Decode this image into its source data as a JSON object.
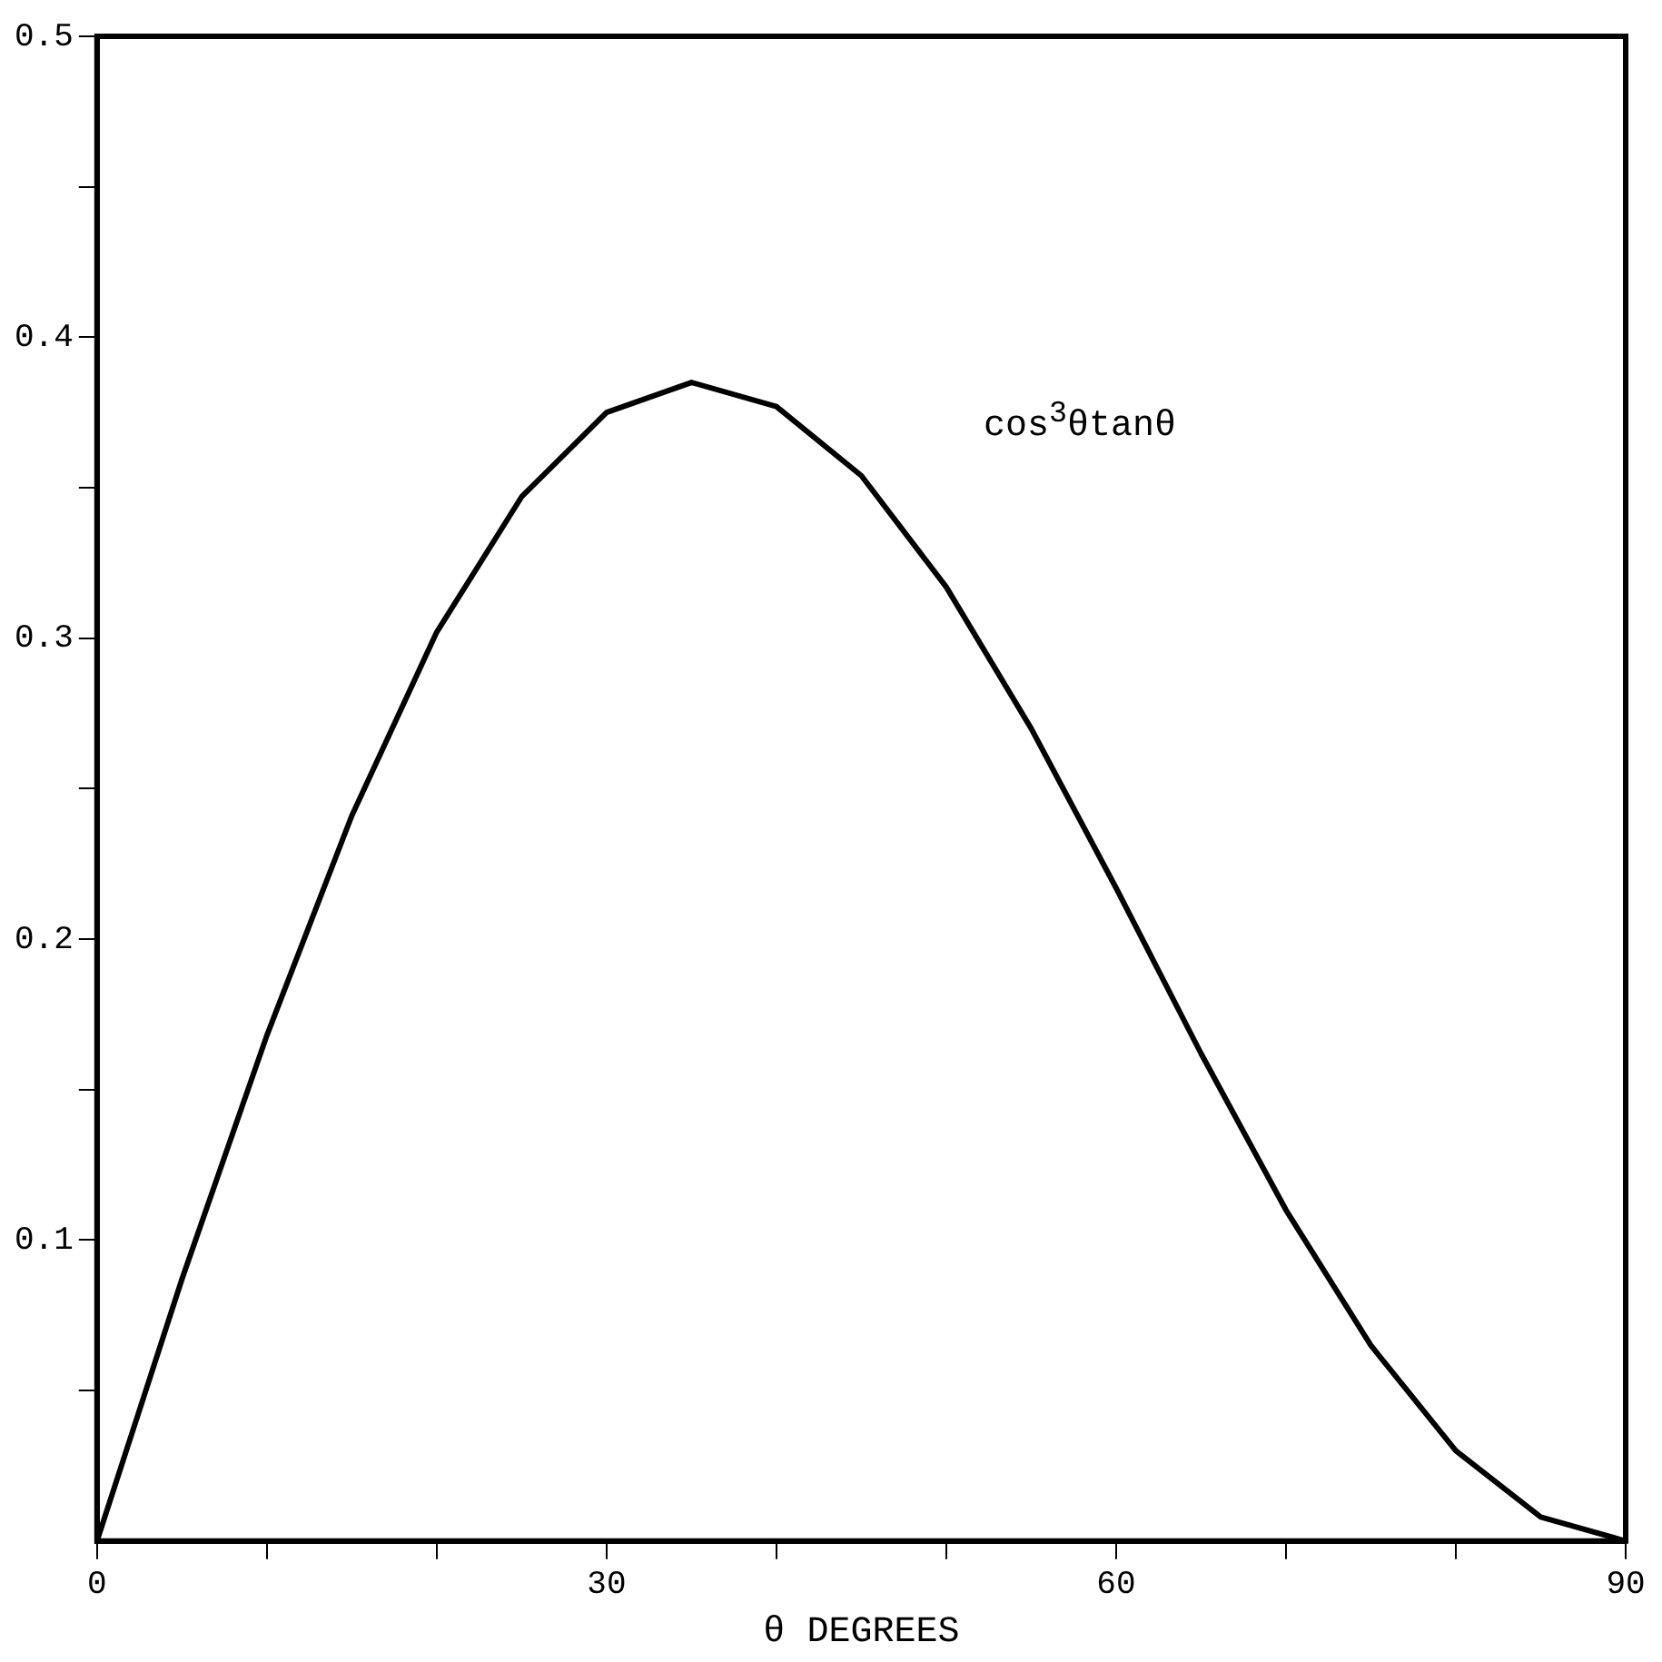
{
  "chart_data": {
    "type": "line",
    "xlabel": "θ DEGREES",
    "annotations": [
      "cos$^{3}$θtanθ"
    ],
    "x": [
      0,
      5,
      10,
      15,
      20,
      25,
      30,
      35,
      40,
      45,
      50,
      55,
      60,
      65,
      70,
      75,
      80,
      85,
      90
    ],
    "series": [
      {
        "color": "#000000",
        "values": [
          0,
          0.087,
          0.168,
          0.241,
          0.302,
          0.347,
          0.375,
          0.385,
          0.377,
          0.354,
          0.317,
          0.27,
          0.217,
          0.162,
          0.11,
          0.065,
          0.03,
          0.008,
          0
        ]
      }
    ],
    "xlim": [
      0,
      90
    ],
    "xticks": [
      0,
      {
        "value": 10,
        "label": null
      },
      {
        "value": 20,
        "label": null
      },
      30,
      {
        "value": 40,
        "label": null
      },
      {
        "value": 50,
        "label": null
      },
      60,
      {
        "value": 70,
        "label": null
      },
      {
        "value": 80,
        "label": null
      },
      90
    ],
    "ylim": [
      0,
      0.5
    ],
    "yticks": [
      {
        "value": 0.05,
        "label": null
      },
      0.1,
      {
        "value": 0.15,
        "label": null
      },
      0.2,
      {
        "value": 0.25,
        "label": null
      },
      0.3,
      {
        "value": 0.35,
        "label": null
      },
      0.4,
      {
        "value": 0.45,
        "label": null
      },
      0.5
    ],
    "grid": false,
    "legend": false,
    "marker": "none",
    "line_style": "solid"
  }
}
